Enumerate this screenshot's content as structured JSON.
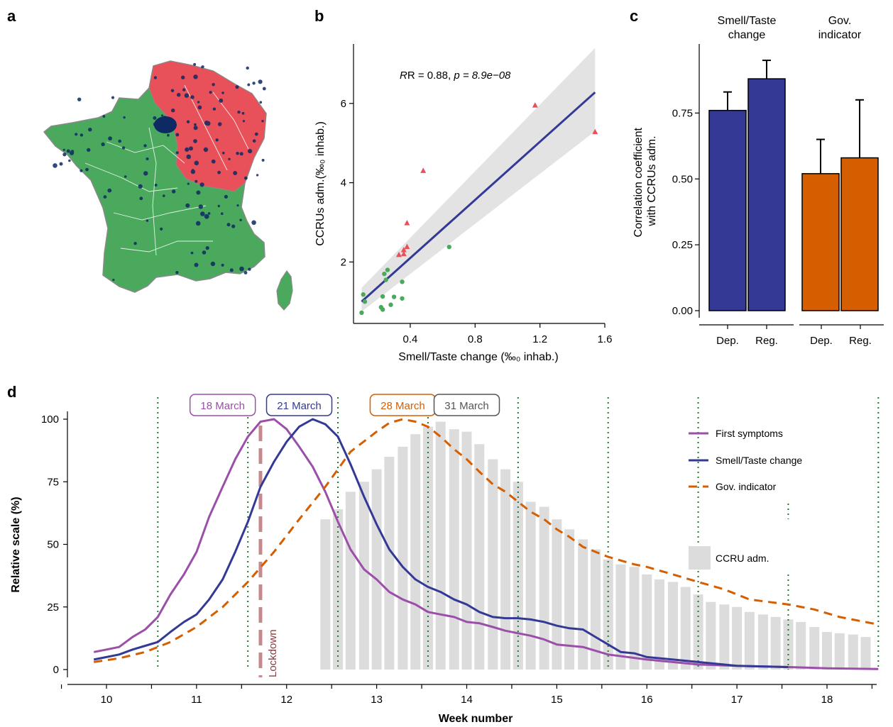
{
  "panels": {
    "a": "a",
    "b": "b",
    "c": "c",
    "d": "d"
  },
  "colors": {
    "red_region": "#e8515a",
    "green_region": "#4aa95c",
    "dot": "#0e2a63",
    "navy": "#343996",
    "orange": "#d55e00",
    "purple": "#9b4fa8",
    "grey_bar": "#dcdcdc",
    "lockdown": "#c48a8e",
    "grid": "#1f7a2f"
  },
  "map": {
    "depicts": "map of France",
    "icon": "france-map"
  },
  "chart_data": [
    {
      "id": "b",
      "type": "scatter",
      "xlabel": "Smell/Taste change (‰₀ inhab.)",
      "ylabel": "CCRUs adm.(‰₀ inhab.)",
      "annotation": {
        "r": "R = 0.88, ",
        "p": "p = 8.9e−08"
      },
      "xlim": [
        0.05,
        1.6
      ],
      "ylim": [
        0.45,
        7.5
      ],
      "xticks": [
        "0.4",
        "0.8",
        "1.2",
        "1.6"
      ],
      "xtick_values": [
        0.4,
        0.8,
        1.2,
        1.6
      ],
      "yticks": [
        "2",
        "4",
        "6"
      ],
      "ytick_values": [
        2,
        4,
        6
      ],
      "series": [
        {
          "marker": "triangle",
          "color": "#e8515a",
          "points": [
            [
              1.17,
              5.95
            ],
            [
              1.54,
              5.28
            ],
            [
              0.48,
              4.3
            ],
            [
              0.38,
              2.98
            ],
            [
              0.38,
              2.38
            ],
            [
              0.36,
              2.3
            ],
            [
              0.33,
              2.18
            ],
            [
              0.36,
              2.2
            ]
          ]
        },
        {
          "marker": "circle",
          "color": "#4aa95c",
          "points": [
            [
              0.64,
              2.38
            ],
            [
              0.26,
              1.8
            ],
            [
              0.24,
              1.7
            ],
            [
              0.25,
              1.55
            ],
            [
              0.35,
              1.5
            ],
            [
              0.11,
              1.18
            ],
            [
              0.12,
              1.0
            ],
            [
              0.23,
              1.13
            ],
            [
              0.3,
              1.12
            ],
            [
              0.35,
              1.08
            ],
            [
              0.22,
              0.86
            ],
            [
              0.23,
              0.8
            ],
            [
              0.28,
              0.92
            ],
            [
              0.1,
              0.72
            ]
          ]
        }
      ],
      "fit": {
        "x": [
          0.1,
          1.54
        ],
        "y": [
          1.0,
          6.28
        ],
        "ci_lower": [
          0.75,
          5.3
        ],
        "ci_upper": [
          1.35,
          7.4
        ]
      }
    },
    {
      "id": "c",
      "type": "bar",
      "ylabel": "Correlation coefficient\nwith CCRUs adm.",
      "ylim": [
        0,
        1.0
      ],
      "yticks": [
        "0.00",
        "0.25",
        "0.50",
        "0.75"
      ],
      "ytick_values": [
        0,
        0.25,
        0.5,
        0.75
      ],
      "facets": [
        {
          "title": "Smell/Taste\nchange",
          "color": "#343996",
          "categories": [
            "Dep.",
            "Reg."
          ],
          "values": [
            0.76,
            0.88
          ],
          "errors": [
            0.83,
            0.95
          ]
        },
        {
          "title": "Gov.\nindicator",
          "color": "#d55e00",
          "categories": [
            "Dep.",
            "Reg."
          ],
          "values": [
            0.52,
            0.58
          ],
          "errors": [
            0.65,
            0.8
          ]
        }
      ]
    },
    {
      "id": "d",
      "type": "line",
      "xlabel": "Week number",
      "ylabel": "Relative scale (%)",
      "xlim": [
        9.6,
        18.8
      ],
      "ylim": [
        -5,
        110
      ],
      "xticks": [
        "10",
        "11",
        "12",
        "13",
        "14",
        "15",
        "16",
        "17",
        "18"
      ],
      "xtick_values": [
        10,
        11,
        12,
        13,
        14,
        15,
        16,
        17,
        18
      ],
      "yticks": [
        "0",
        "25",
        "50",
        "75",
        "100"
      ],
      "ytick_values": [
        0,
        25,
        50,
        75,
        100
      ],
      "vlines": [
        10.57,
        11.57,
        12.57,
        13.57,
        14.57,
        15.57,
        16.57,
        17.57,
        18.57
      ],
      "lockdown": {
        "x": 11.71,
        "label": "Lockdown"
      },
      "date_boxes": [
        {
          "label": "18 March",
          "x": 11.29,
          "color": "#9b4fa8"
        },
        {
          "label": "21 March",
          "x": 12.14,
          "color": "#343996"
        },
        {
          "label": "28 March",
          "x": 13.29,
          "color": "#d55e00"
        },
        {
          "label": "31 March",
          "x": 14.0,
          "color": "#555555"
        }
      ],
      "legend": [
        "First symptoms",
        "Smell/Taste change",
        "Gov. indicator",
        "CCRU adm."
      ],
      "series": [
        {
          "name": "First symptoms",
          "color": "#9b4fa8",
          "style": "solid",
          "x": [
            9.86,
            10.0,
            10.14,
            10.29,
            10.43,
            10.57,
            10.71,
            10.86,
            11.0,
            11.14,
            11.29,
            11.43,
            11.57,
            11.71,
            11.86,
            12.0,
            12.14,
            12.29,
            12.43,
            12.57,
            12.71,
            12.86,
            13.0,
            13.14,
            13.29,
            13.43,
            13.57,
            13.71,
            13.86,
            14.0,
            14.14,
            14.29,
            14.43,
            14.57,
            14.71,
            14.86,
            15.0,
            15.29,
            15.57,
            16.0,
            16.57,
            17.0,
            17.57,
            18.0,
            18.57
          ],
          "y": [
            7,
            8,
            9,
            13,
            16,
            21,
            30,
            38,
            47,
            61,
            73,
            84,
            93,
            99,
            100,
            96,
            89,
            81,
            71,
            59,
            48,
            40,
            36,
            31,
            28,
            26,
            23,
            22,
            21,
            19,
            18.5,
            17,
            15.5,
            14.5,
            13.5,
            12,
            10,
            9,
            6,
            4,
            2,
            1.5,
            1,
            0.5,
            0.2
          ]
        },
        {
          "name": "Smell/Taste change",
          "color": "#343996",
          "style": "solid",
          "x": [
            9.86,
            10.0,
            10.14,
            10.29,
            10.43,
            10.57,
            10.71,
            10.86,
            11.0,
            11.14,
            11.29,
            11.43,
            11.57,
            11.71,
            11.86,
            12.0,
            12.14,
            12.29,
            12.43,
            12.57,
            12.71,
            12.86,
            13.0,
            13.14,
            13.29,
            13.43,
            13.57,
            13.71,
            13.86,
            14.0,
            14.14,
            14.29,
            14.43,
            14.57,
            14.71,
            14.86,
            15.0,
            15.14,
            15.29,
            15.43,
            15.57,
            15.71,
            15.86,
            16.0,
            16.29,
            16.57,
            17.0,
            17.57
          ],
          "y": [
            4,
            5,
            6,
            8,
            9.5,
            11,
            15,
            19,
            22,
            28,
            36,
            47,
            59,
            73,
            83,
            91,
            97,
            100,
            98,
            93,
            82,
            69,
            58,
            48,
            41,
            36,
            33,
            31,
            28,
            26,
            23,
            21,
            20.5,
            20.5,
            20,
            19,
            17.5,
            16.5,
            16,
            13,
            10,
            7,
            6.5,
            5,
            4,
            3,
            1.5,
            1
          ]
        },
        {
          "name": "Gov. indicator",
          "color": "#d55e00",
          "style": "dashed",
          "x": [
            9.86,
            10.14,
            10.43,
            10.71,
            11.0,
            11.29,
            11.57,
            11.86,
            12.14,
            12.43,
            12.71,
            13.0,
            13.14,
            13.29,
            13.43,
            13.57,
            13.71,
            13.86,
            14.0,
            14.14,
            14.29,
            14.43,
            14.57,
            14.71,
            14.86,
            15.0,
            15.14,
            15.29,
            15.57,
            15.86,
            16.0,
            16.29,
            16.57,
            16.86,
            17.14,
            17.57,
            17.86,
            18.14,
            18.57
          ],
          "y": [
            3,
            4.5,
            7,
            11,
            17,
            25,
            35,
            47,
            60,
            73,
            87,
            95,
            98.5,
            100,
            99,
            97,
            93,
            88,
            84,
            79,
            74,
            71,
            67,
            63,
            60,
            56,
            53,
            49,
            45,
            42,
            41,
            38,
            35,
            32,
            28,
            26,
            24,
            21,
            18
          ]
        }
      ],
      "bars": {
        "name": "CCRU adm.",
        "color": "#dcdcdc",
        "x": [
          12.43,
          12.57,
          12.71,
          12.86,
          13.0,
          13.14,
          13.29,
          13.43,
          13.57,
          13.71,
          13.86,
          14.0,
          14.14,
          14.29,
          14.43,
          14.57,
          14.71,
          14.86,
          15.0,
          15.14,
          15.29,
          15.43,
          15.57,
          15.71,
          15.86,
          16.0,
          16.14,
          16.29,
          16.43,
          16.57,
          16.71,
          16.86,
          17.0,
          17.14,
          17.29,
          17.43,
          17.57,
          17.71,
          17.86,
          18.0,
          18.14,
          18.29,
          18.43
        ],
        "values": [
          60,
          64,
          71,
          75,
          80,
          85,
          89,
          94,
          97,
          99,
          96,
          95,
          90,
          84,
          80,
          75,
          67,
          65,
          60,
          56,
          52,
          48,
          44,
          42,
          41,
          38,
          36,
          35,
          33,
          30,
          27,
          26,
          25,
          23,
          22,
          21,
          20,
          19,
          17,
          15,
          14.5,
          14,
          13
        ]
      }
    }
  ]
}
